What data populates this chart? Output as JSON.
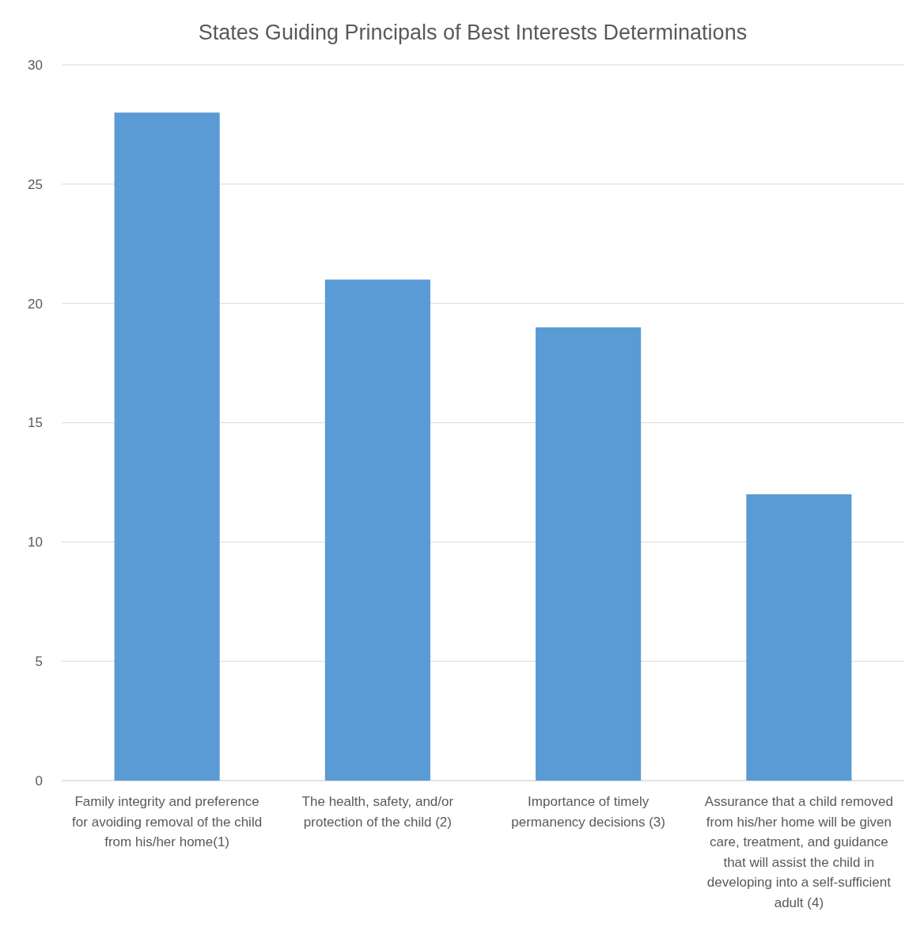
{
  "chart_data": {
    "type": "bar",
    "title": "States Guiding Principals of Best Interests Determinations",
    "categories": [
      "Family integrity and preference for avoiding removal of the child from his/her home(1)",
      "The health, safety, and/or protection of the child (2)",
      "Importance of timely permanency decisions (3)",
      "Assurance that a child removed from his/her home will be given care, treatment, and guidance that will assist the child in developing into a self-sufficient adult (4)"
    ],
    "values": [
      28,
      21,
      19,
      12
    ],
    "color": "#5b9bd5",
    "ylim": [
      0,
      30
    ],
    "yticks": [
      0,
      5,
      10,
      15,
      20,
      25,
      30
    ],
    "grid": "y"
  }
}
